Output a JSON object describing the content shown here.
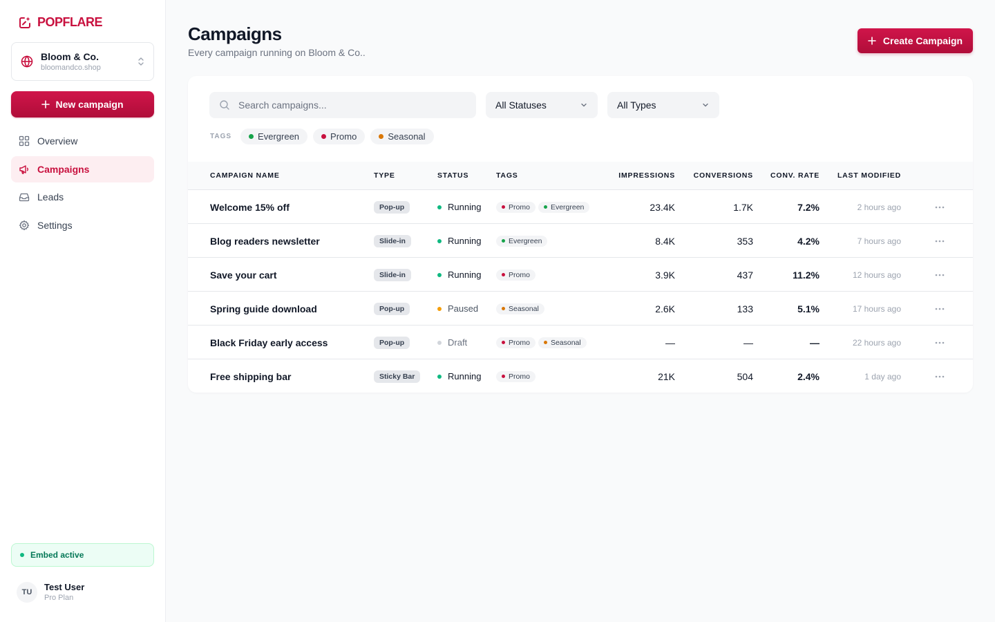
{
  "brand": {
    "name": "POPFLARE"
  },
  "workspace": {
    "name": "Bloom & Co.",
    "domain": "bloomandco.shop"
  },
  "sidebar": {
    "new_campaign_label": "New campaign",
    "items": [
      {
        "label": "Overview",
        "icon": "grid-icon"
      },
      {
        "label": "Campaigns",
        "icon": "megaphone-icon",
        "active": true
      },
      {
        "label": "Leads",
        "icon": "inbox-icon"
      },
      {
        "label": "Settings",
        "icon": "gear-icon"
      }
    ],
    "embed_status": "Embed active"
  },
  "user": {
    "initials": "TU",
    "name": "Test User",
    "plan": "Pro Plan"
  },
  "header": {
    "title": "Campaigns",
    "subtitle": "Every campaign running on Bloom & Co..",
    "create_label": "Create Campaign"
  },
  "filters": {
    "search_placeholder": "Search campaigns...",
    "status_value": "All Statuses",
    "type_value": "All Types",
    "tags_label": "TAGS",
    "tags": [
      {
        "label": "Evergreen",
        "color": "#16a34a"
      },
      {
        "label": "Promo",
        "color": "#c8103e"
      },
      {
        "label": "Seasonal",
        "color": "#d97706"
      }
    ]
  },
  "table": {
    "columns": [
      "CAMPAIGN NAME",
      "TYPE",
      "STATUS",
      "TAGS",
      "IMPRESSIONS",
      "CONVERSIONS",
      "CONV. RATE",
      "LAST MODIFIED"
    ],
    "rows": [
      {
        "name": "Welcome 15% off",
        "type": "Pop-up",
        "status": "Running",
        "tags": [
          "Promo",
          "Evergreen"
        ],
        "impressions": "23.4K",
        "conversions": "1.7K",
        "rate": "7.2%",
        "modified": "2 hours ago"
      },
      {
        "name": "Blog readers newsletter",
        "type": "Slide-in",
        "status": "Running",
        "tags": [
          "Evergreen"
        ],
        "impressions": "8.4K",
        "conversions": "353",
        "rate": "4.2%",
        "modified": "7 hours ago"
      },
      {
        "name": "Save your cart",
        "type": "Slide-in",
        "status": "Running",
        "tags": [
          "Promo"
        ],
        "impressions": "3.9K",
        "conversions": "437",
        "rate": "11.2%",
        "modified": "12 hours ago"
      },
      {
        "name": "Spring guide download",
        "type": "Pop-up",
        "status": "Paused",
        "tags": [
          "Seasonal"
        ],
        "impressions": "2.6K",
        "conversions": "133",
        "rate": "5.1%",
        "modified": "17 hours ago"
      },
      {
        "name": "Black Friday early access",
        "type": "Pop-up",
        "status": "Draft",
        "tags": [
          "Promo",
          "Seasonal"
        ],
        "impressions": "—",
        "conversions": "—",
        "rate": "—",
        "modified": "22 hours ago"
      },
      {
        "name": "Free shipping bar",
        "type": "Sticky Bar",
        "status": "Running",
        "tags": [
          "Promo"
        ],
        "impressions": "21K",
        "conversions": "504",
        "rate": "2.4%",
        "modified": "1 day ago"
      }
    ]
  },
  "colors": {
    "accent": "#c8103e",
    "status": {
      "Running": "#10b981",
      "Paused": "#f59e0b",
      "Draft": "#d1d5db"
    },
    "status_text": {
      "Running": "#111827",
      "Paused": "#4b5563",
      "Draft": "#6b7280"
    },
    "tags": {
      "Evergreen": "#16a34a",
      "Promo": "#c8103e",
      "Seasonal": "#d97706"
    }
  }
}
